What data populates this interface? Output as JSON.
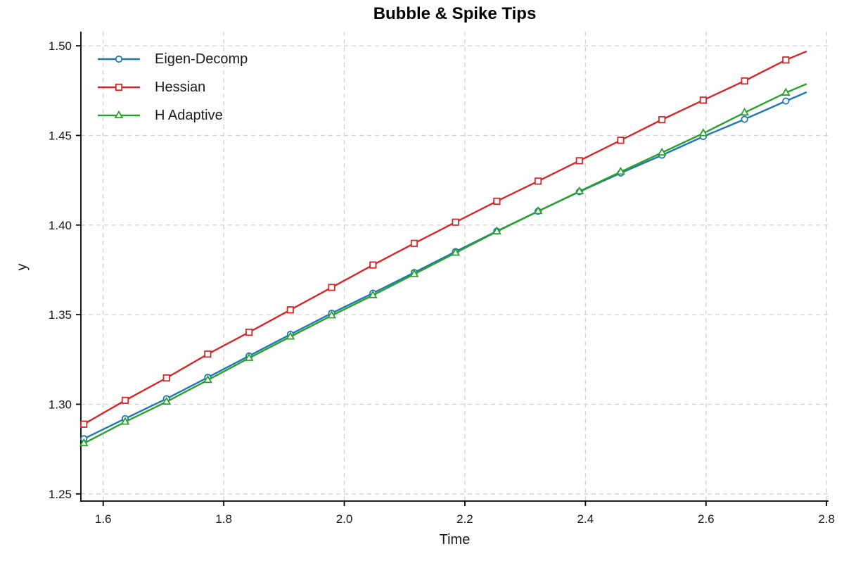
{
  "figure": {
    "title": "Bubble & Spike Tips",
    "xlabel": "Time",
    "ylabel": "y"
  },
  "legend": {
    "position": "upper-left",
    "items": [
      {
        "label": "Eigen-Decomp"
      },
      {
        "label": "Hessian"
      },
      {
        "label": "H Adaptive"
      }
    ]
  },
  "chart_data": {
    "type": "line",
    "title": "Bubble & Spike Tips",
    "xlabel": "Time",
    "ylabel": "y",
    "grid": true,
    "legend_position": "upper-left",
    "x_range": [
      1.563,
      2.8033
    ],
    "y_range": [
      1.246,
      1.5079
    ],
    "xticks": [
      1.6,
      1.8,
      2.0,
      2.2,
      2.4,
      2.6,
      2.8
    ],
    "xtick_labels": [
      "1.6",
      "1.8",
      "2.0",
      "2.2",
      "2.4",
      "2.6",
      "2.8"
    ],
    "yticks": [
      1.25,
      1.3,
      1.35,
      1.4,
      1.45,
      1.5
    ],
    "ytick_labels": [
      "1.25",
      "1.30",
      "1.35",
      "1.40",
      "1.45",
      "1.50"
    ],
    "x": [
      1.568,
      1.6365,
      1.705,
      1.7735,
      1.842,
      1.9105,
      1.979,
      2.0475,
      2.116,
      2.1845,
      2.253,
      2.3215,
      2.39,
      2.4585,
      2.527,
      2.5955,
      2.664,
      2.7325,
      2.766
    ],
    "marker_points": 18,
    "series": [
      {
        "id": "eigen-decomp",
        "name": "Eigen-Decomp",
        "color": "#1f77b4",
        "marker": "circle",
        "y": [
          1.2808,
          1.292,
          1.3031,
          1.315,
          1.327,
          1.339,
          1.3508,
          1.362,
          1.3735,
          1.3852,
          1.3966,
          1.4077,
          1.4186,
          1.429,
          1.439,
          1.4494,
          1.459,
          1.4692,
          1.474
        ]
      },
      {
        "id": "hessian",
        "name": "Hessian",
        "color": "#d62728",
        "marker": "square",
        "y": [
          1.2889,
          1.3022,
          1.3147,
          1.328,
          1.3402,
          1.3527,
          1.3652,
          1.3777,
          1.3898,
          1.4016,
          1.4133,
          1.4245,
          1.4359,
          1.4473,
          1.4588,
          1.4697,
          1.4804,
          1.4921,
          1.4968
        ]
      },
      {
        "id": "h-adaptive",
        "name": "H Adaptive",
        "color": "#2ca02c",
        "marker": "triangle",
        "y": [
          1.2782,
          1.2902,
          1.3014,
          1.3135,
          1.3258,
          1.3377,
          1.3495,
          1.3608,
          1.3726,
          1.3845,
          1.3964,
          1.4077,
          1.4188,
          1.4297,
          1.4404,
          1.4512,
          1.4627,
          1.4738,
          1.4786
        ]
      }
    ]
  }
}
